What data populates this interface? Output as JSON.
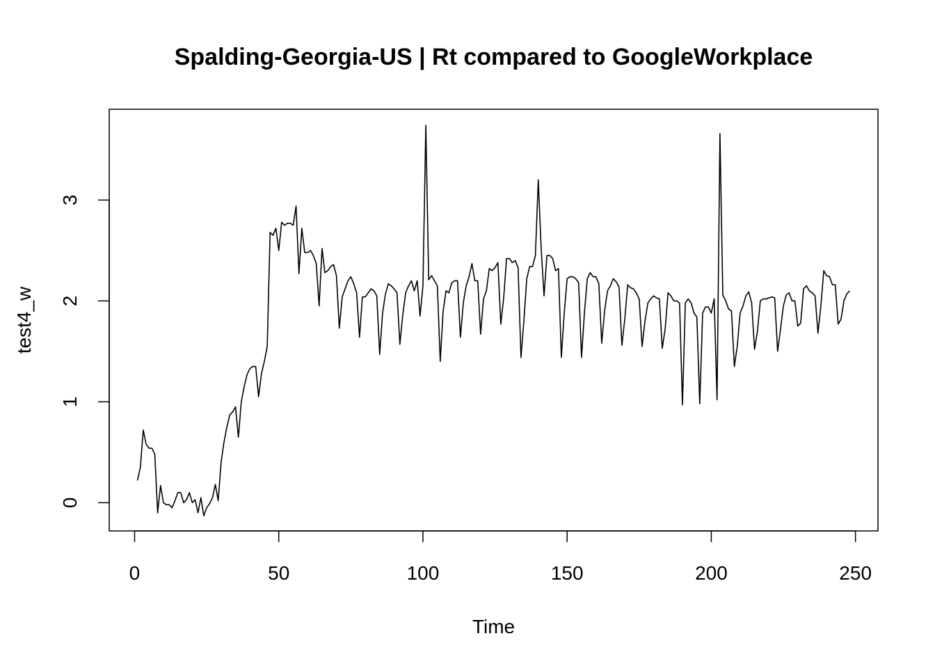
{
  "chart_data": {
    "type": "line",
    "title": "Spalding-Georgia-US | Rt compared to GoogleWorkplace",
    "xlabel": "Time",
    "ylabel": "test4_w",
    "xlim": [
      -8.8,
      257.8
    ],
    "ylim": [
      -0.28,
      3.9
    ],
    "x_ticks": [
      0,
      50,
      100,
      150,
      200,
      250
    ],
    "y_ticks": [
      0,
      1,
      2,
      3
    ],
    "grid": false,
    "legend": "none",
    "line_color": "#000000",
    "series": [
      {
        "x_start": 1,
        "values": [
          0.22,
          0.35,
          0.72,
          0.58,
          0.54,
          0.54,
          0.48,
          -0.1,
          0.17,
          0.0,
          -0.02,
          -0.02,
          -0.05,
          0.02,
          0.1,
          0.1,
          0.0,
          0.03,
          0.1,
          0.0,
          0.03,
          -0.1,
          0.05,
          -0.13,
          -0.05,
          -0.01,
          0.05,
          0.18,
          0.02,
          0.4,
          0.6,
          0.75,
          0.87,
          0.9,
          0.95,
          0.65,
          1.0,
          1.15,
          1.27,
          1.33,
          1.35,
          1.35,
          1.05,
          1.28,
          1.4,
          1.55,
          2.68,
          2.65,
          2.72,
          2.5,
          2.78,
          2.75,
          2.77,
          2.77,
          2.75,
          2.94,
          2.27,
          2.72,
          2.48,
          2.48,
          2.5,
          2.45,
          2.37,
          1.95,
          2.52,
          2.28,
          2.3,
          2.34,
          2.36,
          2.25,
          1.73,
          2.04,
          2.12,
          2.2,
          2.24,
          2.17,
          2.08,
          1.64,
          2.04,
          2.04,
          2.08,
          2.12,
          2.1,
          2.05,
          1.47,
          1.88,
          2.07,
          2.17,
          2.15,
          2.12,
          2.08,
          1.57,
          1.86,
          2.08,
          2.15,
          2.2,
          2.1,
          2.2,
          1.85,
          2.15,
          3.74,
          2.21,
          2.25,
          2.2,
          2.15,
          1.4,
          1.9,
          2.1,
          2.08,
          2.18,
          2.2,
          2.2,
          1.64,
          1.98,
          2.15,
          2.24,
          2.37,
          2.2,
          2.2,
          1.67,
          2.02,
          2.1,
          2.32,
          2.3,
          2.33,
          2.38,
          1.77,
          2.03,
          2.42,
          2.42,
          2.38,
          2.4,
          2.33,
          1.44,
          1.8,
          2.22,
          2.34,
          2.34,
          2.45,
          3.2,
          2.52,
          2.05,
          2.45,
          2.45,
          2.42,
          2.3,
          2.32,
          1.44,
          1.88,
          2.22,
          2.24,
          2.24,
          2.22,
          2.18,
          1.44,
          1.88,
          2.22,
          2.28,
          2.24,
          2.24,
          2.17,
          1.58,
          1.9,
          2.1,
          2.15,
          2.22,
          2.19,
          2.14,
          1.56,
          1.82,
          2.16,
          2.13,
          2.12,
          2.08,
          2.02,
          1.55,
          1.8,
          1.98,
          2.02,
          2.05,
          2.03,
          2.02,
          1.53,
          1.72,
          2.08,
          2.05,
          2.0,
          2.0,
          1.98,
          0.97,
          1.98,
          2.02,
          1.98,
          1.88,
          1.84,
          0.98,
          1.88,
          1.94,
          1.94,
          1.88,
          2.02,
          1.02,
          3.66,
          2.06,
          2.0,
          1.92,
          1.9,
          1.35,
          1.55,
          1.88,
          1.95,
          2.05,
          2.09,
          1.98,
          1.52,
          1.7,
          2.0,
          2.02,
          2.02,
          2.03,
          2.04,
          2.03,
          1.5,
          1.72,
          1.95,
          2.06,
          2.08,
          2.0,
          2.0,
          1.75,
          1.78,
          2.12,
          2.15,
          2.1,
          2.08,
          2.05,
          1.68,
          1.95,
          2.3,
          2.25,
          2.24,
          2.16,
          2.16,
          1.77,
          1.82,
          2.0,
          2.07,
          2.1
        ]
      }
    ]
  }
}
